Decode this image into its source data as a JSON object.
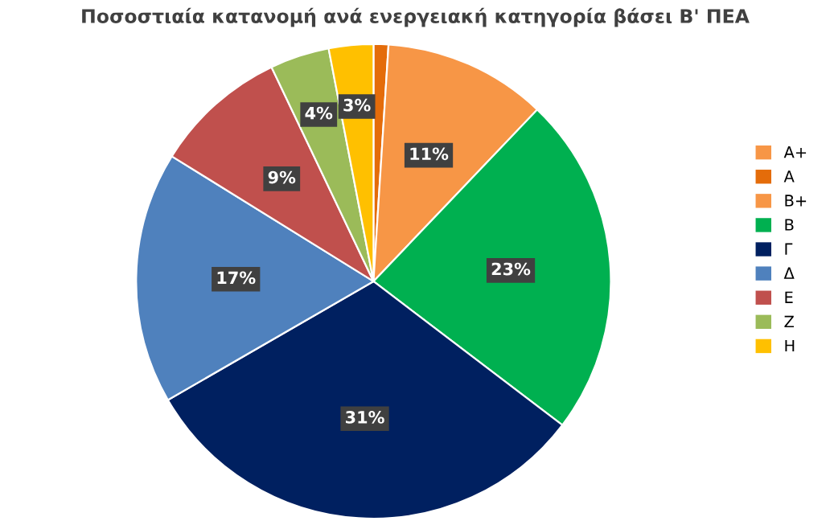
{
  "chart_data": {
    "type": "pie",
    "title": "Ποσοστιαία κατανομή ανά ενεργειακή κατηγορία βάσει Β' ΠΕΑ",
    "categories": [
      "Α+",
      "Α",
      "Β+",
      "Β",
      "Γ",
      "Δ",
      "Ε",
      "Ζ",
      "Η"
    ],
    "values": [
      0,
      1,
      11,
      23,
      31,
      17,
      9,
      4,
      3
    ],
    "value_labels": [
      null,
      null,
      "11%",
      "23%",
      "31%",
      "17%",
      "9%",
      "4%",
      "3%"
    ],
    "colors": [
      "#f79646",
      "#e46c0a",
      "#f79646",
      "#00b050",
      "#002060",
      "#4f81bd",
      "#c0504d",
      "#9bbb59",
      "#ffc000"
    ],
    "legend": "right"
  }
}
